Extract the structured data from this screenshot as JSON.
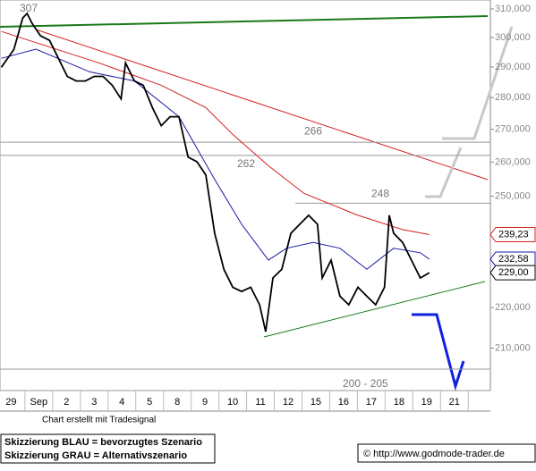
{
  "chart_data": {
    "type": "line",
    "log_scale": true,
    "xlim": [
      -0.4,
      17.3
    ],
    "ylim": [
      200,
      313.2
    ],
    "xticks": [
      {
        "value": 0,
        "label": "29"
      },
      {
        "value": 1,
        "label": "Sep"
      },
      {
        "value": 2,
        "label": "2"
      },
      {
        "value": 3,
        "label": "3"
      },
      {
        "value": 4,
        "label": "4"
      },
      {
        "value": 5,
        "label": "5"
      },
      {
        "value": 6,
        "label": "8"
      },
      {
        "value": 7,
        "label": "9"
      },
      {
        "value": 8,
        "label": "10"
      },
      {
        "value": 9,
        "label": "11"
      },
      {
        "value": 10,
        "label": "12"
      },
      {
        "value": 11,
        "label": "15"
      },
      {
        "value": 12,
        "label": "16"
      },
      {
        "value": 13,
        "label": "17"
      },
      {
        "value": 14,
        "label": "18"
      },
      {
        "value": 15,
        "label": "19"
      },
      {
        "value": 16,
        "label": "21"
      }
    ],
    "yticks": [
      {
        "value": 310,
        "label": "310,000"
      },
      {
        "value": 300,
        "label": "300,000"
      },
      {
        "value": 290,
        "label": "290,000"
      },
      {
        "value": 280,
        "label": "280,000"
      },
      {
        "value": 270,
        "label": "270,000"
      },
      {
        "value": 260,
        "label": "260,000"
      },
      {
        "value": 250,
        "label": "250,000"
      },
      {
        "value": 220,
        "label": "220,000"
      },
      {
        "value": 210,
        "label": "210,000"
      }
    ],
    "series": [
      {
        "color": "#000000",
        "x": [
          -0.35,
          0.1,
          0.42,
          0.58,
          0.74,
          1.06,
          1.39,
          1.71,
          2.03,
          2.35,
          2.68,
          3.0,
          3.32,
          3.65,
          3.97,
          4.13,
          4.45,
          4.77,
          5.1,
          5.42,
          5.74,
          6.06,
          6.39,
          6.71,
          7.03,
          7.35,
          7.68,
          8.0,
          8.32,
          8.65,
          8.97,
          9.19,
          9.45,
          9.77,
          10.1,
          10.42,
          10.74,
          11.06,
          11.23,
          11.55,
          11.87,
          12.19,
          12.52,
          12.84,
          13.16,
          13.48,
          13.65,
          13.81,
          14.13,
          14.45,
          14.77,
          15.1
        ],
        "values": [
          289.9,
          295.9,
          306.8,
          308.4,
          305.2,
          300.6,
          299.0,
          292.9,
          286.9,
          285.4,
          285.4,
          286.9,
          286.9,
          284.0,
          279.6,
          291.4,
          285.4,
          284.0,
          276.8,
          271.1,
          273.9,
          273.9,
          261.5,
          260.1,
          256.2,
          239.6,
          229.9,
          225.2,
          224.1,
          225.2,
          220.7,
          214.0,
          227.6,
          229.9,
          239.6,
          242.1,
          244.6,
          242.1,
          227.6,
          232.3,
          222.9,
          220.7,
          225.2,
          222.9,
          220.7,
          225.2,
          244.6,
          239.6,
          237.1,
          232.3,
          227.6,
          229.0
        ]
      },
      {
        "color": "#1a1aa8",
        "x": [
          -0.35,
          0.9,
          2.84,
          4.45,
          6.06,
          7.35,
          8.32,
          9.29,
          9.94,
          10.9,
          11.87,
          12.84,
          13.81,
          14.77,
          15.1
        ],
        "values": [
          292.9,
          296.0,
          288.4,
          285.4,
          273.9,
          254.9,
          242.1,
          232.3,
          235.5,
          237.1,
          235.5,
          229.9,
          235.5,
          234.3,
          232.58
        ]
      },
      {
        "color": "#d42020",
        "x": [
          -0.35,
          3.16,
          5.42,
          7.03,
          8.0,
          9.29,
          10.58,
          12.52,
          14.13,
          15.1
        ],
        "values": [
          302.1,
          291.4,
          284.0,
          276.8,
          268.4,
          258.9,
          250.8,
          244.6,
          240.6,
          239.23
        ]
      }
    ],
    "value_tags": [
      {
        "value": 239.23,
        "label": "239,23",
        "color": "#d42020"
      },
      {
        "value": 232.58,
        "label": "232,58",
        "color": "#1a1aa8"
      },
      {
        "value": 229.0,
        "label": "229,00",
        "color": "#000000"
      }
    ],
    "levels": [
      {
        "value": 266,
        "label": "266"
      },
      {
        "value": 262,
        "label": "262"
      },
      {
        "value": 248,
        "label": "248"
      },
      {
        "value": 205,
        "label": "200 - 205"
      }
    ],
    "annotations": [
      "307"
    ],
    "credit": "Chart erstellt mit Tradesignal",
    "legend_lines": [
      "Skizzierung BLAU = bevorzugtes Szenario",
      "Skizzierung GRAU = Alternativszenario"
    ],
    "source": "© http://www.godmode-trader.de"
  }
}
